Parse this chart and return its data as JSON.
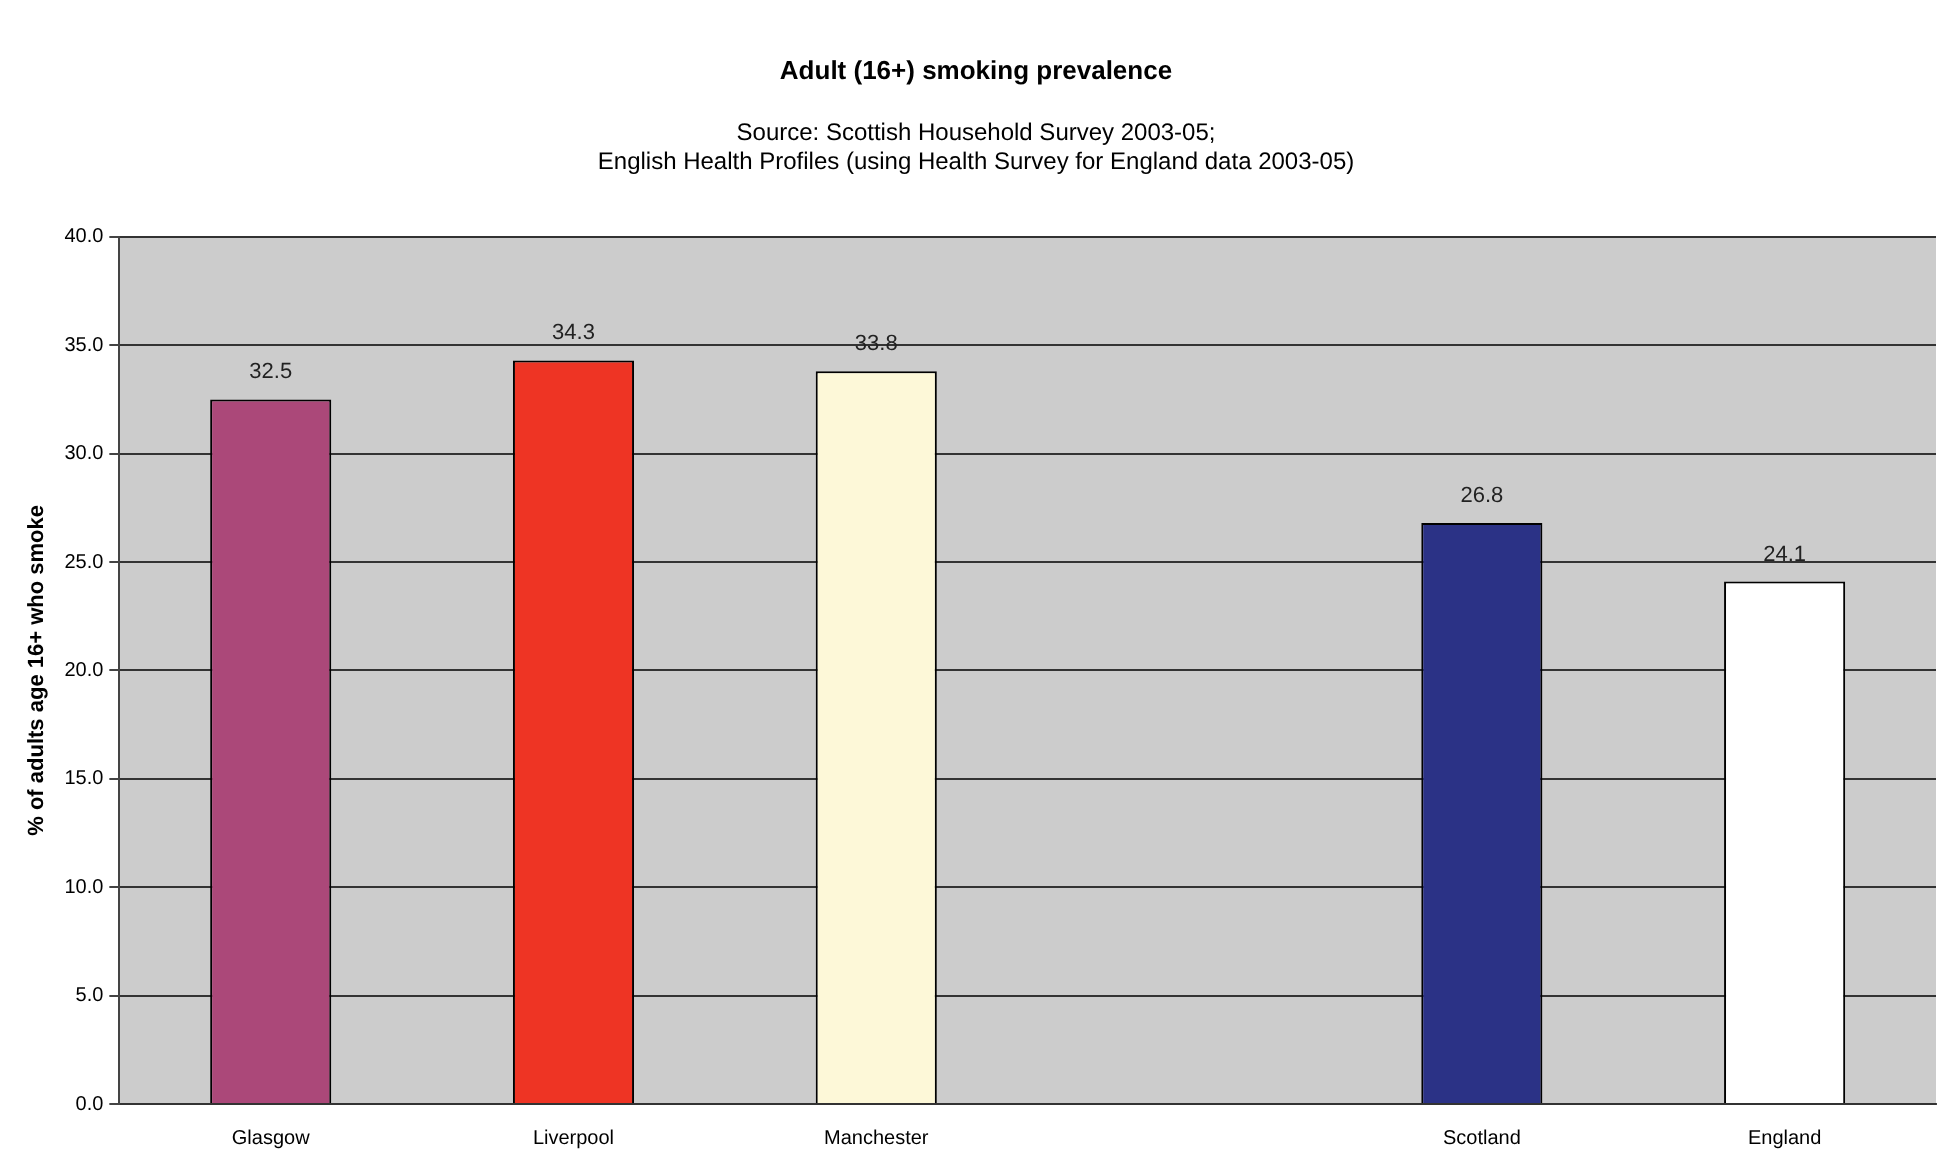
{
  "chart_data": {
    "type": "bar",
    "title": "Adult (16+) smoking prevalence",
    "subtitle": "Source: Scottish Household Survey 2003-05;\nEnglish Health Profiles (using Health Survey for England data 2003-05)",
    "ylabel": "% of adults age 16+ who smoke",
    "categories": [
      "Glasgow",
      "Liverpool",
      "Manchester",
      null,
      "Scotland",
      "England"
    ],
    "values": [
      32.5,
      34.3,
      33.8,
      null,
      26.8,
      24.1
    ],
    "colors": [
      "#ab4879",
      "#ee3424",
      "#fdf8d8",
      "#cccccc",
      "#2b3286",
      "#ffffff"
    ],
    "ylim": [
      0,
      40
    ],
    "yticks": [
      {
        "value": 0,
        "label": "0.0"
      },
      {
        "value": 5,
        "label": "5.0"
      },
      {
        "value": 10,
        "label": "10.0"
      },
      {
        "value": 15,
        "label": "15.0"
      },
      {
        "value": 20,
        "label": "20.0"
      },
      {
        "value": 25,
        "label": "25.0"
      },
      {
        "value": 30,
        "label": "30.0"
      },
      {
        "value": 35,
        "label": "35.0"
      },
      {
        "value": 40,
        "label": "40.0"
      }
    ],
    "grid": "y",
    "data_labels": true,
    "legend": false
  }
}
